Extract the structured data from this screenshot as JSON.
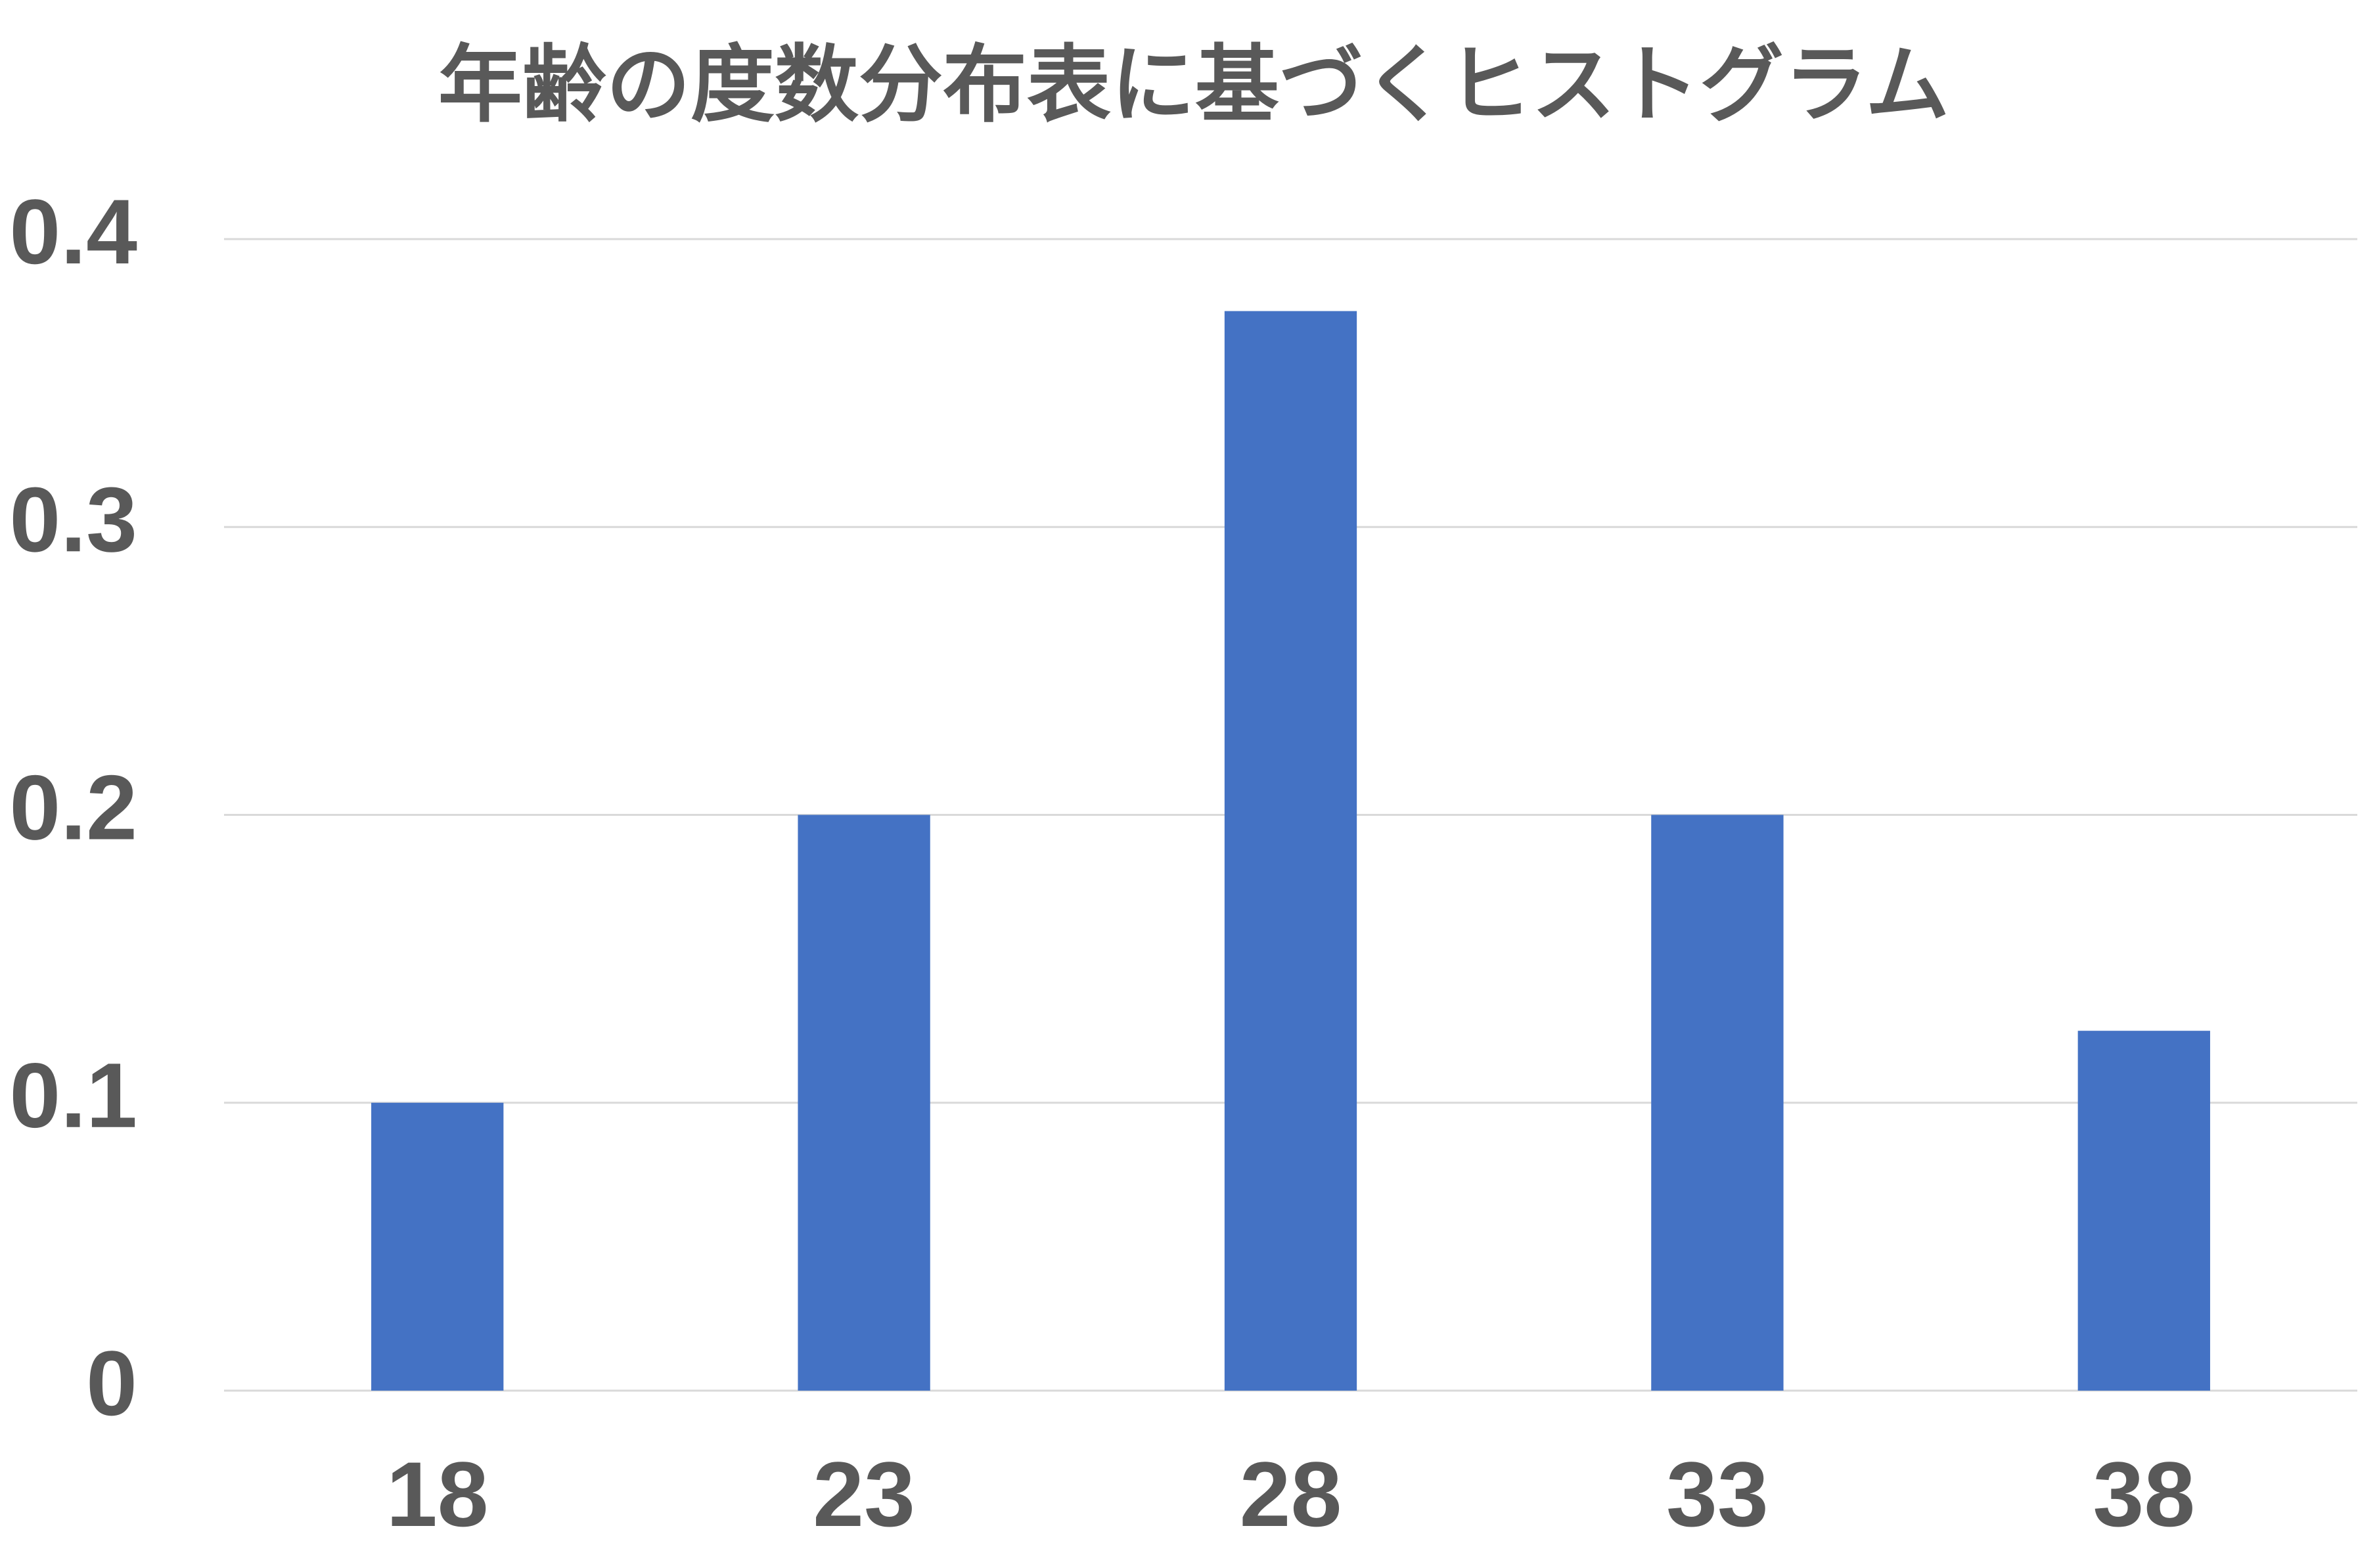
{
  "chart_data": {
    "type": "bar",
    "title": "年齢の度数分布表に基づくヒストグラム",
    "categories": [
      "18",
      "23",
      "28",
      "33",
      "38"
    ],
    "values": [
      0.1,
      0.2,
      0.375,
      0.2,
      0.125
    ],
    "color": "#4472c4",
    "ylim": [
      0,
      0.4
    ],
    "yticks": [
      0,
      0.1,
      0.2,
      0.3,
      0.4
    ],
    "grid": true
  }
}
